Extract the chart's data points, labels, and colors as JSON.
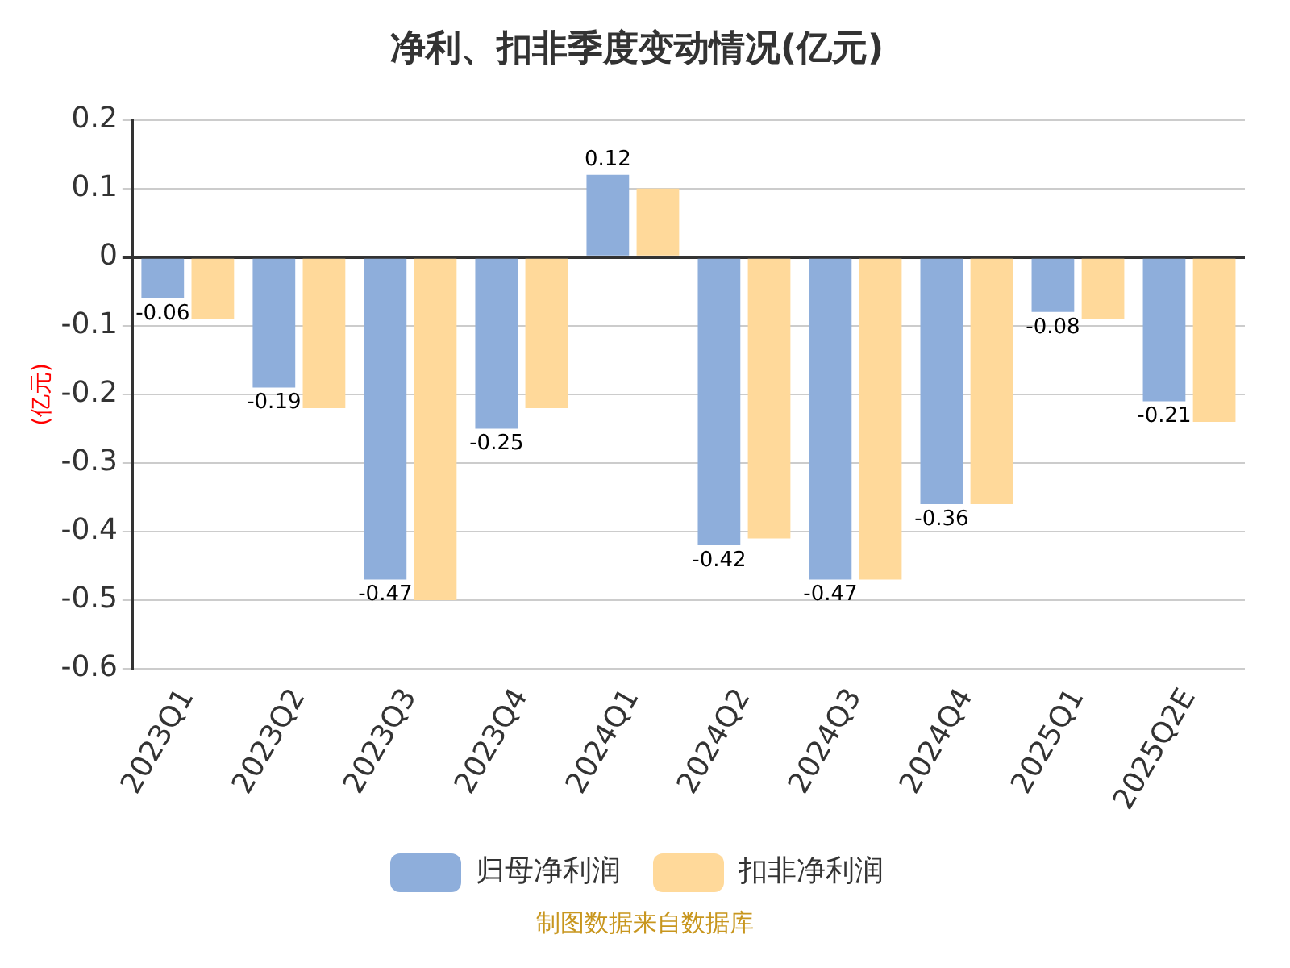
{
  "chart_data": {
    "type": "bar",
    "title": "净利、扣非季度变动情况(亿元)",
    "ylabel": "(亿元)",
    "categories": [
      "2023Q1",
      "2023Q2",
      "2023Q3",
      "2023Q4",
      "2024Q1",
      "2024Q2",
      "2024Q3",
      "2024Q4",
      "2025Q1",
      "2025Q2E"
    ],
    "series": [
      {
        "name": "归母净利润",
        "color": "#8eaedb",
        "values": [
          -0.06,
          -0.19,
          -0.47,
          -0.25,
          0.12,
          -0.42,
          -0.47,
          -0.36,
          -0.08,
          -0.21
        ],
        "value_labels": [
          "-0.06",
          "-0.19",
          "-0.47",
          "-0.25",
          "0.12",
          "-0.42",
          "-0.47",
          "-0.36",
          "-0.08",
          "-0.21"
        ]
      },
      {
        "name": "扣非净利润",
        "color": "#ffd99a",
        "values": [
          -0.09,
          -0.22,
          -0.5,
          -0.22,
          0.1,
          -0.41,
          -0.47,
          -0.36,
          -0.09,
          -0.24
        ]
      }
    ],
    "ylim": [
      -0.6,
      0.2
    ],
    "yticks": [
      -0.6,
      -0.5,
      -0.4,
      -0.3,
      -0.2,
      -0.1,
      0,
      0.1,
      0.2
    ],
    "grid": "y",
    "legend": "bottom",
    "annotations": [
      "制图数据来自数据库"
    ]
  }
}
